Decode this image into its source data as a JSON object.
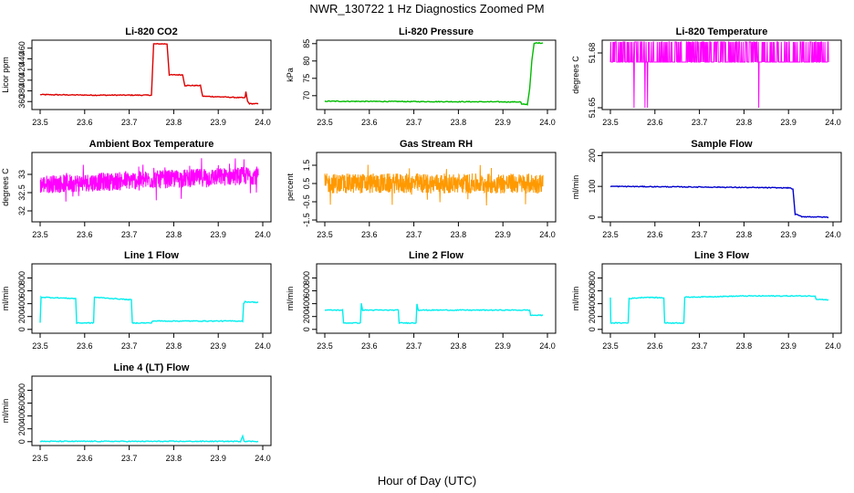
{
  "figure": {
    "title": "NWR_130722  1 Hz Diagnostics Zoomed PM",
    "xlabel": "Hour of Day (UTC)"
  },
  "chart_data": [
    {
      "type": "line",
      "title": "Li-820 CO2",
      "ylabel": "Licor ppm",
      "color": "#dd0000",
      "xlim": [
        23.5,
        24.0
      ],
      "ylim": [
        345,
        475
      ],
      "yticks": [
        360,
        380,
        400,
        420,
        440,
        460
      ],
      "xticks": [
        23.5,
        23.6,
        23.7,
        23.8,
        23.9,
        24.0
      ],
      "series": [
        {
          "x": [
            23.5,
            23.62,
            23.75,
            23.755,
            23.785,
            23.79,
            23.82,
            23.825,
            23.86,
            23.865,
            23.96,
            23.962,
            23.966,
            23.97,
            23.99
          ],
          "y": [
            373,
            372,
            372,
            468,
            468,
            410,
            410,
            390,
            390,
            370,
            367,
            378,
            360,
            356,
            356
          ]
        }
      ]
    },
    {
      "type": "line",
      "title": "Li-820 Pressure",
      "ylabel": "kPa",
      "color": "#00bb00",
      "xlim": [
        23.5,
        24.0
      ],
      "ylim": [
        66,
        86
      ],
      "yticks": [
        70,
        75,
        80,
        85
      ],
      "xticks": [
        23.5,
        23.6,
        23.7,
        23.8,
        23.9,
        24.0
      ],
      "series": [
        {
          "x": [
            23.5,
            23.7,
            23.94,
            23.942,
            23.955,
            23.96,
            23.965,
            23.97,
            23.975,
            23.99
          ],
          "y": [
            68.4,
            68.3,
            68.2,
            67.5,
            67.5,
            72,
            80,
            85,
            85.2,
            85.2
          ]
        }
      ]
    },
    {
      "type": "line",
      "title": "Li-820 Temperature",
      "ylabel": "degrees C",
      "color": "#ff00ff",
      "xlim": [
        23.5,
        24.0
      ],
      "ylim": [
        51.649,
        51.687
      ],
      "yticks": [
        51.65,
        51.68
      ],
      "xticks": [
        23.5,
        23.6,
        23.7,
        23.8,
        23.9,
        24.0
      ],
      "series": [
        {
          "base": 51.675,
          "high": 51.686,
          "low": 51.65
        }
      ]
    },
    {
      "type": "line",
      "title": "Ambient Box Temperature",
      "ylabel": "degrees C",
      "color": "#ff00ff",
      "xlim": [
        23.5,
        24.0
      ],
      "ylim": [
        31.7,
        33.6
      ],
      "yticks": [
        32.0,
        32.5,
        33.0
      ],
      "xticks": [
        23.5,
        23.6,
        23.7,
        23.8,
        23.9,
        24.0
      ],
      "series": [
        {
          "mean": 32.85,
          "spread": 0.25
        }
      ]
    },
    {
      "type": "line",
      "title": "Gas Stream RH",
      "ylabel": "percent",
      "color": "#ff9900",
      "xlim": [
        23.5,
        24.0
      ],
      "ylim": [
        -1.6,
        2.2
      ],
      "yticks": [
        -1.5,
        -0.5,
        0.5,
        1.5
      ],
      "xticks": [
        23.5,
        23.6,
        23.7,
        23.8,
        23.9,
        24.0
      ],
      "series": [
        {
          "mean": 0.5,
          "spread": 0.55
        }
      ]
    },
    {
      "type": "line",
      "title": "Sample Flow",
      "ylabel": "ml/min",
      "color": "#0000cc",
      "xlim": [
        23.5,
        24.0
      ],
      "ylim": [
        -15,
        210
      ],
      "yticks": [
        0,
        100,
        200
      ],
      "xticks": [
        23.5,
        23.6,
        23.7,
        23.8,
        23.9,
        24.0
      ],
      "series": [
        {
          "x": [
            23.5,
            23.7,
            23.905,
            23.91,
            23.915,
            23.93,
            23.99
          ],
          "y": [
            100,
            98,
            95,
            90,
            10,
            2,
            0
          ]
        }
      ]
    },
    {
      "type": "line",
      "title": "Line 1 Flow",
      "ylabel": "ml/min",
      "color": "#00eeee",
      "xlim": [
        23.5,
        24.0
      ],
      "ylim": [
        -60,
        1020
      ],
      "yticks": [
        0,
        200,
        400,
        600,
        800
      ],
      "xticks": [
        23.5,
        23.6,
        23.7,
        23.8,
        23.9,
        24.0
      ],
      "series": [
        {
          "x": [
            23.5,
            23.502,
            23.505,
            23.58,
            23.582,
            23.62,
            23.622,
            23.705,
            23.707,
            23.75,
            23.752,
            23.955,
            23.957,
            23.96,
            23.99
          ],
          "y": [
            100,
            500,
            500,
            480,
            100,
            100,
            500,
            460,
            100,
            100,
            130,
            130,
            400,
            430,
            420
          ]
        }
      ]
    },
    {
      "type": "line",
      "title": "Line 2 Flow",
      "ylabel": "ml/min",
      "color": "#00eeee",
      "xlim": [
        23.5,
        24.0
      ],
      "ylim": [
        -60,
        1020
      ],
      "yticks": [
        0,
        200,
        400,
        600,
        800
      ],
      "xticks": [
        23.5,
        23.6,
        23.7,
        23.8,
        23.9,
        24.0
      ],
      "series": [
        {
          "x": [
            23.5,
            23.54,
            23.542,
            23.58,
            23.582,
            23.585,
            23.665,
            23.667,
            23.705,
            23.707,
            23.71,
            23.96,
            23.962,
            23.99
          ],
          "y": [
            300,
            300,
            100,
            100,
            400,
            300,
            300,
            100,
            100,
            400,
            300,
            300,
            220,
            220
          ]
        }
      ]
    },
    {
      "type": "line",
      "title": "Line 3 Flow",
      "ylabel": "ml/min",
      "color": "#00eeee",
      "xlim": [
        23.5,
        24.0
      ],
      "ylim": [
        -60,
        1020
      ],
      "yticks": [
        0,
        200,
        400,
        600,
        800
      ],
      "xticks": [
        23.5,
        23.6,
        23.7,
        23.8,
        23.9,
        24.0
      ],
      "series": [
        {
          "x": [
            23.5,
            23.501,
            23.503,
            23.54,
            23.542,
            23.58,
            23.62,
            23.622,
            23.665,
            23.667,
            23.8,
            23.96,
            23.962,
            23.99
          ],
          "y": [
            500,
            100,
            100,
            100,
            480,
            500,
            490,
            100,
            100,
            500,
            520,
            520,
            470,
            460
          ]
        }
      ]
    },
    {
      "type": "line",
      "title": "Line 4 (LT) Flow",
      "ylabel": "ml/min",
      "color": "#00eeee",
      "xlim": [
        23.5,
        24.0
      ],
      "ylim": [
        -60,
        1020
      ],
      "yticks": [
        0,
        200,
        400,
        600,
        800
      ],
      "xticks": [
        23.5,
        23.6,
        23.7,
        23.8,
        23.9,
        24.0
      ],
      "series": [
        {
          "x": [
            23.5,
            23.95,
            23.955,
            23.958,
            23.962,
            23.99
          ],
          "y": [
            5,
            5,
            90,
            10,
            5,
            5
          ]
        }
      ]
    }
  ]
}
